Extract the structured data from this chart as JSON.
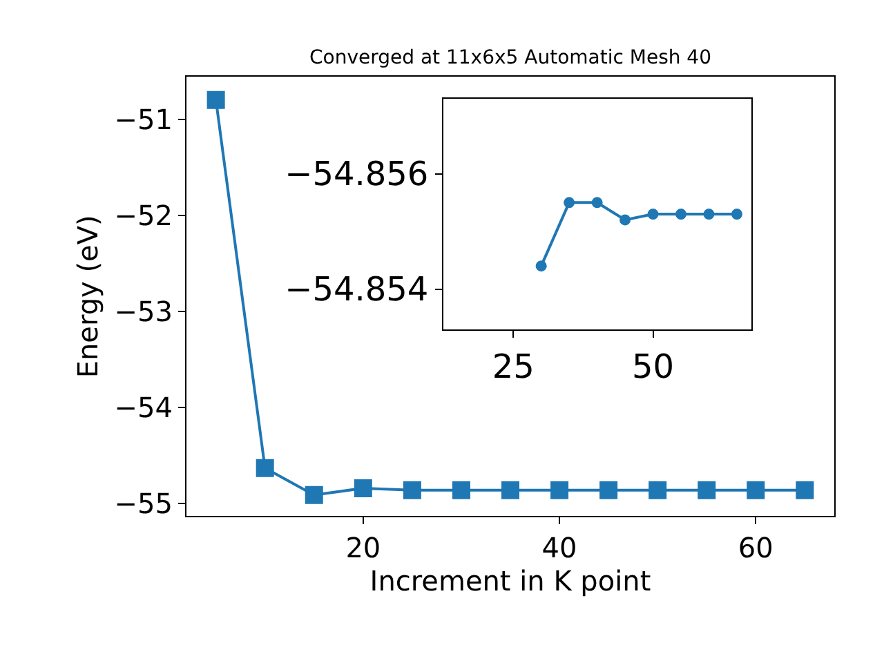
{
  "chart_data": [
    {
      "type": "line",
      "title": "Converged at 11x6x5 Automatic Mesh 40",
      "xlabel": "Increment in K point",
      "ylabel": "Energy (eV)",
      "x": [
        5,
        10,
        15,
        20,
        25,
        30,
        35,
        40,
        45,
        50,
        55,
        60,
        65
      ],
      "series": [
        {
          "color": "#1f77b4",
          "values": [
            -50.8,
            -54.63,
            -54.91,
            -54.84,
            -54.86,
            -54.86,
            -54.86,
            -54.86,
            -54.86,
            -54.86,
            -54.86,
            -54.86,
            -54.86
          ]
        }
      ],
      "xlim": [
        2,
        68
      ],
      "ylim": [
        -55.13,
        -50.56
      ],
      "xticks": [
        20,
        40,
        60
      ],
      "yticks": [
        -55,
        -54,
        -53,
        -52,
        -51
      ],
      "marker": "square",
      "line_style": "solid"
    },
    {
      "type": "line",
      "x": [
        30,
        35,
        40,
        45,
        50,
        55,
        60,
        65
      ],
      "series": [
        {
          "color": "#1f77b4",
          "values": [
            -54.8544,
            -54.8555,
            -54.8555,
            -54.8552,
            -54.8553,
            -54.8553,
            -54.8553,
            -54.8553
          ]
        }
      ],
      "xlim": [
        12.5,
        67.6
      ],
      "ylim": [
        -54.8533,
        -54.8573
      ],
      "xticks": [
        25,
        50
      ],
      "yticks": [
        -54.856,
        -54.854
      ],
      "marker": "circle",
      "line_style": "solid"
    }
  ]
}
